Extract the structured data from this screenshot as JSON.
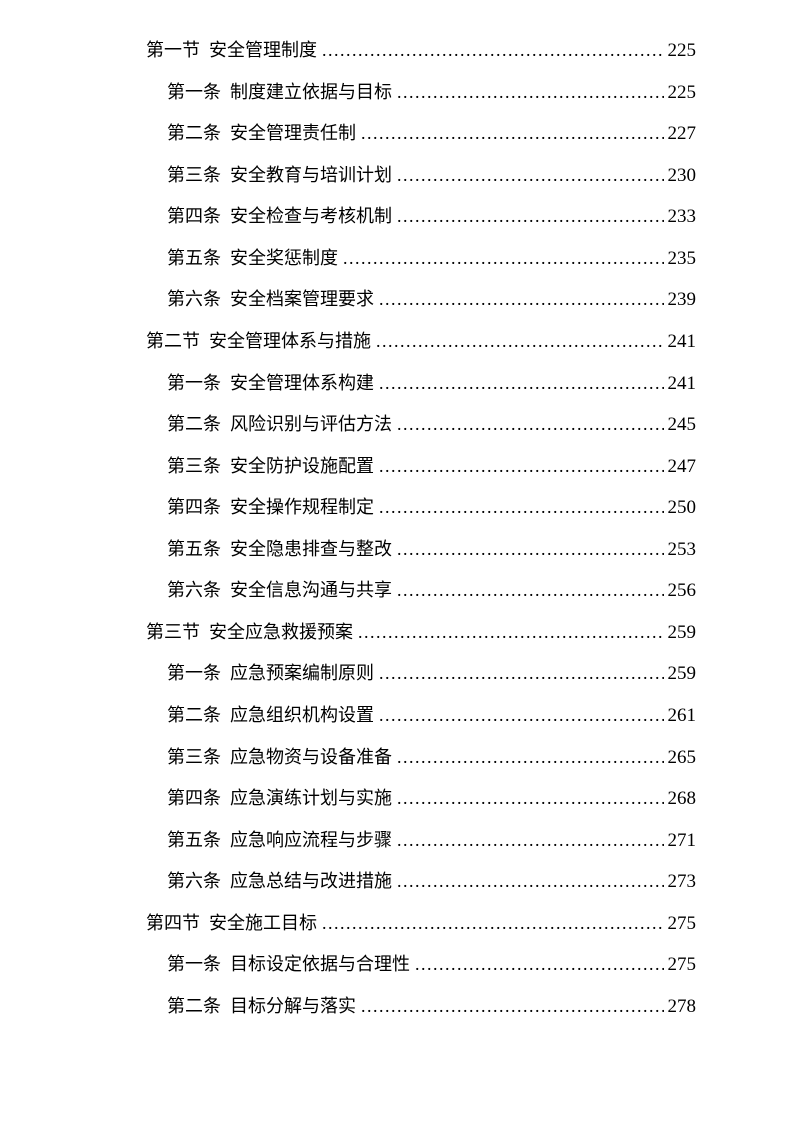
{
  "document": {
    "background": "#ffffff",
    "text_color": "#000000"
  },
  "toc": {
    "entries": [
      {
        "level": 1,
        "label": "第一节",
        "title": "安全管理制度",
        "page": "225"
      },
      {
        "level": 2,
        "label": "第一条",
        "title": "制度建立依据与目标",
        "page": "225"
      },
      {
        "level": 2,
        "label": "第二条",
        "title": "安全管理责任制",
        "page": "227"
      },
      {
        "level": 2,
        "label": "第三条",
        "title": "安全教育与培训计划",
        "page": "230"
      },
      {
        "level": 2,
        "label": "第四条",
        "title": "安全检查与考核机制",
        "page": "233"
      },
      {
        "level": 2,
        "label": "第五条",
        "title": "安全奖惩制度",
        "page": "235"
      },
      {
        "level": 2,
        "label": "第六条",
        "title": "安全档案管理要求",
        "page": "239"
      },
      {
        "level": 1,
        "label": "第二节",
        "title": "安全管理体系与措施",
        "page": "241"
      },
      {
        "level": 2,
        "label": "第一条",
        "title": "安全管理体系构建",
        "page": "241"
      },
      {
        "level": 2,
        "label": "第二条",
        "title": "风险识别与评估方法",
        "page": "245"
      },
      {
        "level": 2,
        "label": "第三条",
        "title": "安全防护设施配置",
        "page": "247"
      },
      {
        "level": 2,
        "label": "第四条",
        "title": "安全操作规程制定",
        "page": "250"
      },
      {
        "level": 2,
        "label": "第五条",
        "title": "安全隐患排查与整改",
        "page": "253"
      },
      {
        "level": 2,
        "label": "第六条",
        "title": "安全信息沟通与共享",
        "page": "256"
      },
      {
        "level": 1,
        "label": "第三节",
        "title": "安全应急救援预案",
        "page": "259"
      },
      {
        "level": 2,
        "label": "第一条",
        "title": "应急预案编制原则",
        "page": "259"
      },
      {
        "level": 2,
        "label": "第二条",
        "title": "应急组织机构设置",
        "page": "261"
      },
      {
        "level": 2,
        "label": "第三条",
        "title": "应急物资与设备准备",
        "page": "265"
      },
      {
        "level": 2,
        "label": "第四条",
        "title": "应急演练计划与实施",
        "page": "268"
      },
      {
        "level": 2,
        "label": "第五条",
        "title": "应急响应流程与步骤",
        "page": "271"
      },
      {
        "level": 2,
        "label": "第六条",
        "title": "应急总结与改进措施",
        "page": "273"
      },
      {
        "level": 1,
        "label": "第四节",
        "title": "安全施工目标",
        "page": "275"
      },
      {
        "level": 2,
        "label": "第一条",
        "title": "目标设定依据与合理性",
        "page": "275"
      },
      {
        "level": 2,
        "label": "第二条",
        "title": "目标分解与落实",
        "page": "278"
      }
    ]
  }
}
